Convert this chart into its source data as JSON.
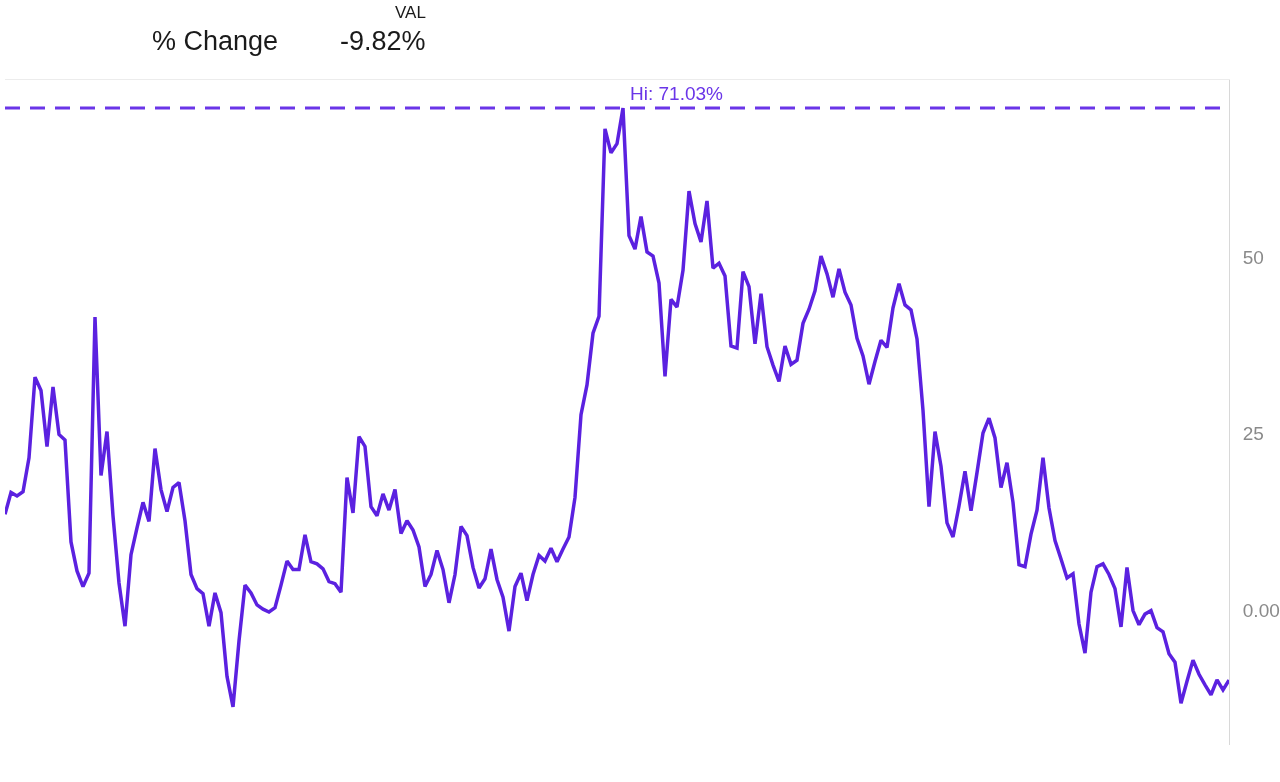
{
  "chart_data": {
    "type": "line",
    "categories": [
      null,
      null,
      null,
      null,
      null,
      null,
      null,
      null,
      null,
      null,
      null,
      null,
      null,
      null,
      null,
      null,
      null,
      null,
      null,
      null,
      null,
      null,
      null,
      null,
      null,
      null,
      null,
      null,
      null,
      null,
      null,
      null,
      null,
      null,
      null,
      null,
      null,
      null,
      null,
      null,
      null,
      null,
      null,
      null,
      null,
      null,
      null,
      null,
      null,
      null,
      null,
      null,
      null,
      null,
      null,
      null,
      null,
      null,
      null,
      null,
      null,
      null,
      null,
      null,
      null,
      null,
      null,
      null,
      null,
      null,
      null,
      null,
      null,
      null,
      null,
      null,
      null,
      null,
      null,
      null,
      null,
      null,
      null,
      null,
      null,
      null,
      null,
      null,
      null,
      null,
      null,
      null,
      null,
      null,
      null,
      null,
      null,
      null,
      null,
      null,
      null,
      null,
      null,
      null,
      null,
      null,
      null,
      null,
      null,
      null,
      null,
      null,
      null,
      null,
      null,
      null,
      null,
      null,
      null,
      null,
      null,
      null,
      null,
      null,
      null,
      null,
      null,
      null,
      null,
      null,
      null,
      null,
      null,
      null,
      null,
      null,
      null,
      null,
      null,
      null,
      null,
      null,
      null,
      null,
      null,
      null,
      null,
      null,
      null,
      null,
      null,
      null,
      null,
      null,
      null,
      null,
      null,
      null,
      null,
      null,
      null,
      null,
      null,
      null,
      null,
      null,
      null,
      null,
      null,
      null,
      null,
      null,
      null,
      null,
      null,
      null,
      null,
      null,
      null,
      null,
      null,
      null,
      null,
      null,
      null,
      null,
      null,
      null,
      null,
      null,
      null,
      null,
      null,
      null,
      null,
      null,
      null,
      null,
      null,
      null,
      null,
      null,
      null,
      null,
      null
    ],
    "series": [
      {
        "color": "#5b21e0",
        "values": [
          13.6,
          16.7,
          16.2,
          16.8,
          21.6,
          33.0,
          31.1,
          23.2,
          31.6,
          24.9,
          24.1,
          9.7,
          5.6,
          3.4,
          5.3,
          41.5,
          19.1,
          25.3,
          13.4,
          3.9,
          -2.2,
          7.9,
          11.7,
          15.3,
          12.6,
          22.9,
          17.1,
          14.0,
          17.4,
          18.1,
          12.7,
          5.1,
          3.1,
          2.4,
          -2.2,
          2.5,
          -0.3,
          -9.3,
          -13.6,
          -4.3,
          3.6,
          2.5,
          0.8,
          0.2,
          -0.2,
          0.4,
          3.6,
          7.0,
          5.8,
          5.8,
          10.7,
          6.9,
          6.6,
          5.9,
          4.1,
          3.8,
          2.6,
          18.8,
          13.8,
          24.6,
          23.2,
          14.7,
          13.4,
          16.5,
          14.2,
          17.1,
          10.9,
          12.7,
          11.4,
          9.0,
          3.4,
          5.1,
          8.5,
          5.8,
          1.1,
          5.1,
          11.9,
          10.6,
          6.1,
          3.2,
          4.5,
          8.7,
          4.4,
          1.9,
          -2.9,
          3.4,
          5.3,
          1.4,
          5.1,
          7.8,
          7.0,
          8.8,
          6.9,
          8.7,
          10.4,
          16.0,
          27.7,
          31.9,
          39.2,
          41.6,
          68.1,
          64.7,
          66.0,
          71.03,
          53.0,
          51.1,
          55.7,
          50.7,
          50.1,
          46.3,
          33.1,
          44.0,
          42.9,
          48.1,
          59.3,
          54.7,
          52.1,
          57.9,
          48.4,
          49.1,
          47.3,
          37.4,
          37.1,
          47.9,
          45.8,
          37.7,
          44.8,
          37.3,
          34.7,
          32.4,
          37.4,
          34.8,
          35.4,
          40.6,
          42.6,
          45.2,
          50.1,
          47.6,
          44.3,
          48.3,
          45.0,
          43.2,
          38.5,
          36.0,
          32.0,
          35.2,
          38.2,
          37.2,
          42.8,
          46.2,
          43.2,
          42.5,
          38.4,
          28.3,
          14.7,
          25.3,
          20.4,
          12.4,
          10.4,
          14.8,
          19.7,
          14.1,
          19.5,
          25.1,
          27.2,
          24.4,
          17.4,
          20.9,
          15.3,
          6.5,
          6.2,
          10.8,
          14.2,
          21.6,
          14.5,
          9.9,
          7.3,
          4.6,
          5.2,
          -1.9,
          -6.0,
          2.6,
          6.2,
          6.6,
          5.1,
          3.1,
          -2.3,
          6.1,
          0.0,
          -2.0,
          -0.5,
          0.0,
          -2.4,
          -3.0,
          -6.1,
          -7.3,
          -13.1,
          -10.0,
          -7.0,
          -9.0,
          -10.5,
          -11.9,
          -9.8,
          -11.2,
          -9.82
        ]
      }
    ],
    "ylim": [
      -19,
      75
    ],
    "yticks": [
      {
        "value": 0,
        "label": "0.00"
      },
      25,
      50
    ],
    "tick_labels": "y",
    "ref_lines": [
      {
        "axis": "y",
        "value": 71.03,
        "label": "Hi: 71.03%",
        "color": "#6a35e8",
        "line_style": "dashed"
      }
    ],
    "annotations": [
      "VAL",
      "% Change",
      "-9.82%"
    ]
  }
}
